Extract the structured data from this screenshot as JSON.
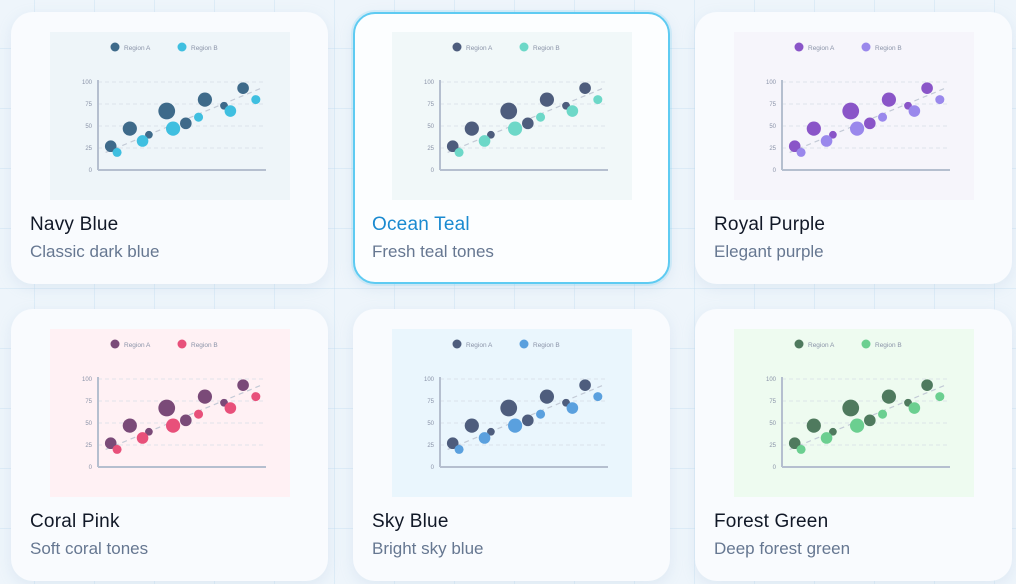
{
  "themes": [
    {
      "name": "Navy Blue",
      "description": "Classic dark blue",
      "selected": false,
      "colors": {
        "bg": "#eef5f9",
        "region_a": "#3e6a8a",
        "region_b": "#3fbfe0"
      }
    },
    {
      "name": "Ocean Teal",
      "description": "Fresh teal tones",
      "selected": true,
      "colors": {
        "bg": "#f1f8f9",
        "region_a": "#4e5d7d",
        "region_b": "#6dd8c8"
      }
    },
    {
      "name": "Royal Purple",
      "description": "Elegant purple",
      "selected": false,
      "colors": {
        "bg": "#f6f5fb",
        "region_a": "#8a55c8",
        "region_b": "#9a88ec"
      }
    },
    {
      "name": "Coral Pink",
      "description": "Soft coral tones",
      "selected": false,
      "colors": {
        "bg": "#fff1f4",
        "region_a": "#7a4a78",
        "region_b": "#e8507a"
      }
    },
    {
      "name": "Sky Blue",
      "description": "Bright sky blue",
      "selected": false,
      "colors": {
        "bg": "#eaf6fd",
        "region_a": "#4e5d7d",
        "region_b": "#5aa0de"
      }
    },
    {
      "name": "Forest Green",
      "description": "Deep forest green",
      "selected": false,
      "colors": {
        "bg": "#eefbf0",
        "region_a": "#4f7a5e",
        "region_b": "#6bcf90"
      }
    }
  ],
  "chart_data": {
    "type": "scatter",
    "title": "",
    "xlabel": "",
    "ylabel": "",
    "ylim": [
      0,
      100
    ],
    "yticks": [
      0,
      25,
      50,
      75,
      100
    ],
    "grid": true,
    "legend_position": "top",
    "legend": [
      "Region A",
      "Region B"
    ],
    "series": [
      {
        "name": "Region A",
        "points": [
          {
            "x": 1,
            "y": 27,
            "size": 9
          },
          {
            "x": 2.5,
            "y": 47,
            "size": 11
          },
          {
            "x": 4,
            "y": 40,
            "size": 6
          },
          {
            "x": 5.4,
            "y": 67,
            "size": 13
          },
          {
            "x": 6.9,
            "y": 53,
            "size": 9
          },
          {
            "x": 8.4,
            "y": 80,
            "size": 11
          },
          {
            "x": 9.9,
            "y": 73,
            "size": 6
          },
          {
            "x": 11.4,
            "y": 93,
            "size": 9
          }
        ]
      },
      {
        "name": "Region B",
        "points": [
          {
            "x": 1.5,
            "y": 20,
            "size": 7
          },
          {
            "x": 3.5,
            "y": 33,
            "size": 9
          },
          {
            "x": 5.9,
            "y": 47,
            "size": 11
          },
          {
            "x": 7.9,
            "y": 60,
            "size": 7
          },
          {
            "x": 10.4,
            "y": 67,
            "size": 9
          },
          {
            "x": 12.4,
            "y": 80,
            "size": 7
          }
        ]
      }
    ],
    "trendline": {
      "style": "dashed",
      "from": {
        "x": 0.6,
        "y": 20
      },
      "to": {
        "x": 13,
        "y": 94
      }
    }
  }
}
